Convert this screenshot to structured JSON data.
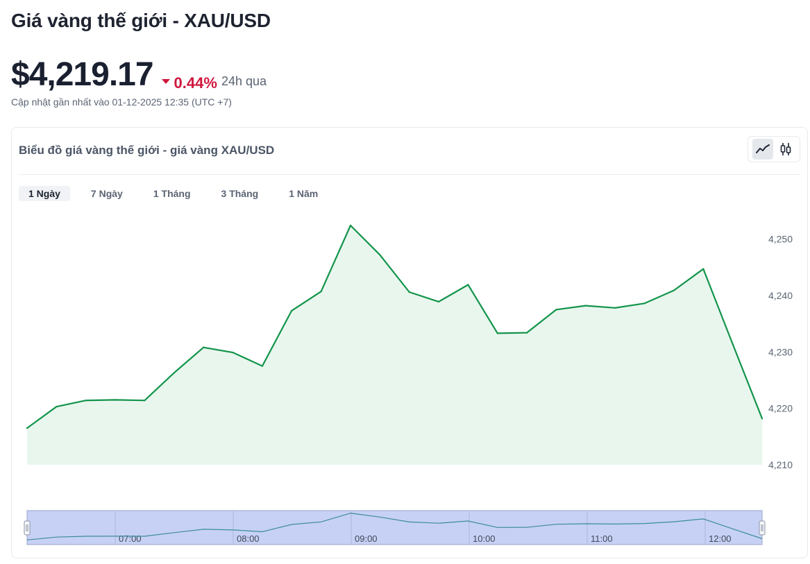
{
  "header": {
    "title": "Giá vàng thế giới - XAU/USD",
    "price": "$4,219.17",
    "change": "0.44%",
    "period": "24h qua",
    "updated": "Cập nhật gần nhất vào 01-12-2025 12:35 (UTC +7)"
  },
  "card": {
    "title": "Biểu đồ giá vàng thế giới - giá vàng XAU/USD",
    "tabs": [
      {
        "label": "1 Ngày",
        "active": true
      },
      {
        "label": "7 Ngày",
        "active": false
      },
      {
        "label": "1 Tháng",
        "active": false
      },
      {
        "label": "3 Tháng",
        "active": false
      },
      {
        "label": "1 Năm",
        "active": false
      }
    ],
    "chart_types": [
      "line-chart-icon",
      "candlestick-icon"
    ]
  },
  "colors": {
    "line": "#12944a",
    "area": "#e9f6ee",
    "negative": "#d0163d",
    "navigator_fill": "#c7d1f5",
    "navigator_line": "#3b8c9a"
  },
  "chart_data": {
    "type": "line",
    "x": [
      "06:15",
      "06:30",
      "06:45",
      "07:00",
      "07:15",
      "07:30",
      "07:45",
      "08:00",
      "08:15",
      "08:30",
      "08:45",
      "09:00",
      "09:15",
      "09:30",
      "09:45",
      "10:00",
      "10:15",
      "10:30",
      "10:45",
      "11:00",
      "11:15",
      "11:30",
      "11:45",
      "12:00",
      "12:15",
      "12:35"
    ],
    "values": [
      4216.5,
      4220.3,
      4221.4,
      4221.5,
      4221.4,
      4226.3,
      4230.8,
      4229.9,
      4227.5,
      4237.3,
      4240.7,
      4252.4,
      4247.2,
      4240.6,
      4238.9,
      4241.9,
      4233.3,
      4233.4,
      4237.5,
      4238.2,
      4237.8,
      4238.6,
      4240.9,
      4244.7,
      4231.4,
      4218.2
    ],
    "ylim": [
      4210,
      4254
    ],
    "yticks": [
      4210,
      4220,
      4230,
      4240,
      4250
    ],
    "ytick_labels": [
      "4,210",
      "4,220",
      "4,230",
      "4,240",
      "4,250"
    ],
    "navigator_ticks": [
      "07:00",
      "08:00",
      "09:00",
      "10:00",
      "11:00",
      "12:00"
    ],
    "grid": false
  }
}
